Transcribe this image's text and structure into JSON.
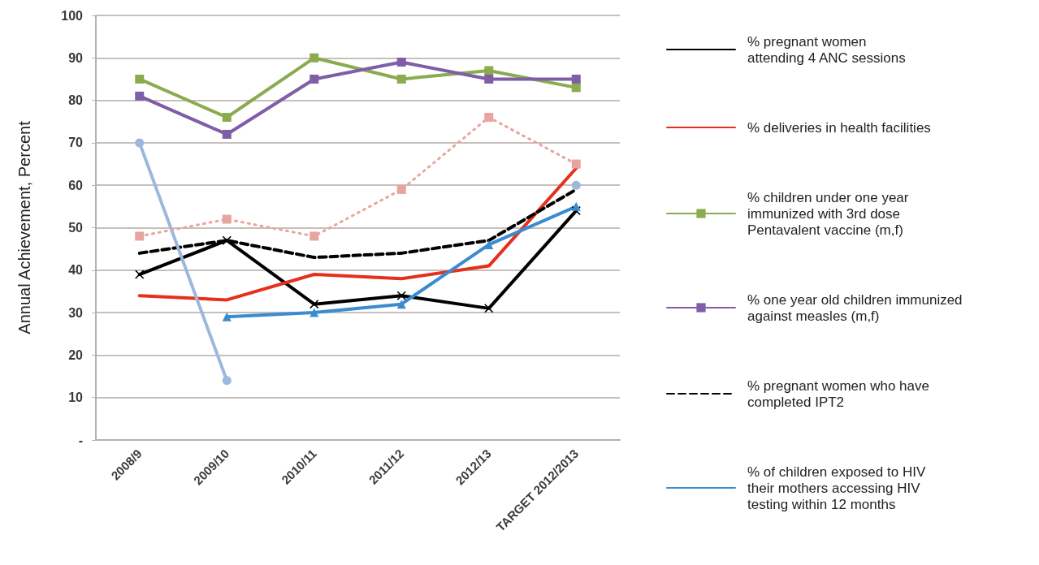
{
  "chart_data": {
    "type": "line",
    "ylabel": "Annual Achievement, Percent",
    "categories": [
      "2008/9",
      "2009/10",
      "2010/11",
      "2011/12",
      "2012/13",
      "TARGET 2012/2013"
    ],
    "series": [
      {
        "name": "% pregnant women\nattending 4 ANC sessions",
        "color": "#000000",
        "values": [
          39,
          47,
          32,
          34,
          31,
          54
        ],
        "marker": "cross",
        "line_style": "solid"
      },
      {
        "name": "% deliveries in health facilities",
        "color": "#e5301c",
        "values": [
          34,
          33,
          39,
          38,
          41,
          64
        ],
        "marker": "none",
        "line_style": "solid"
      },
      {
        "name": "% children under one year\nimmunized with 3rd dose\nPentavalent vaccine (m,f)",
        "color": "#8bab4f",
        "values": [
          85,
          76,
          90,
          85,
          87,
          83
        ],
        "marker": "square",
        "line_style": "solid"
      },
      {
        "name": "% one year old children immunized\nagainst measles (m,f)",
        "color": "#7e5ea6",
        "values": [
          81,
          72,
          85,
          89,
          85,
          85
        ],
        "marker": "square",
        "line_style": "solid"
      },
      {
        "name": "% pregnant women who have\ncompleted IPT2",
        "color": "#000000",
        "values": [
          44,
          47,
          43,
          44,
          47,
          59
        ],
        "marker": "none",
        "line_style": "dashed"
      },
      {
        "name": "% of children exposed to HIV\ntheir mothers accessing HIV\ntesting within 12 months",
        "color": "#3a8cd0",
        "values": [
          null,
          29,
          30,
          32,
          46,
          55
        ],
        "marker": "triangle",
        "line_style": "solid"
      },
      {
        "color": "#9db8dd",
        "values": [
          70,
          14,
          null,
          null,
          null,
          60
        ],
        "marker": "circle",
        "line_style": "solid"
      },
      {
        "color": "#e8a59f",
        "values": [
          48,
          52,
          48,
          59,
          76,
          65
        ],
        "marker": "square",
        "line_style": "dotted"
      }
    ],
    "ylim": [
      0,
      100
    ],
    "yticks": [
      {
        "value": 0,
        "label": "-"
      },
      10,
      20,
      30,
      40,
      50,
      60,
      70,
      80,
      90,
      100
    ],
    "grid": "y",
    "legend": "right"
  }
}
